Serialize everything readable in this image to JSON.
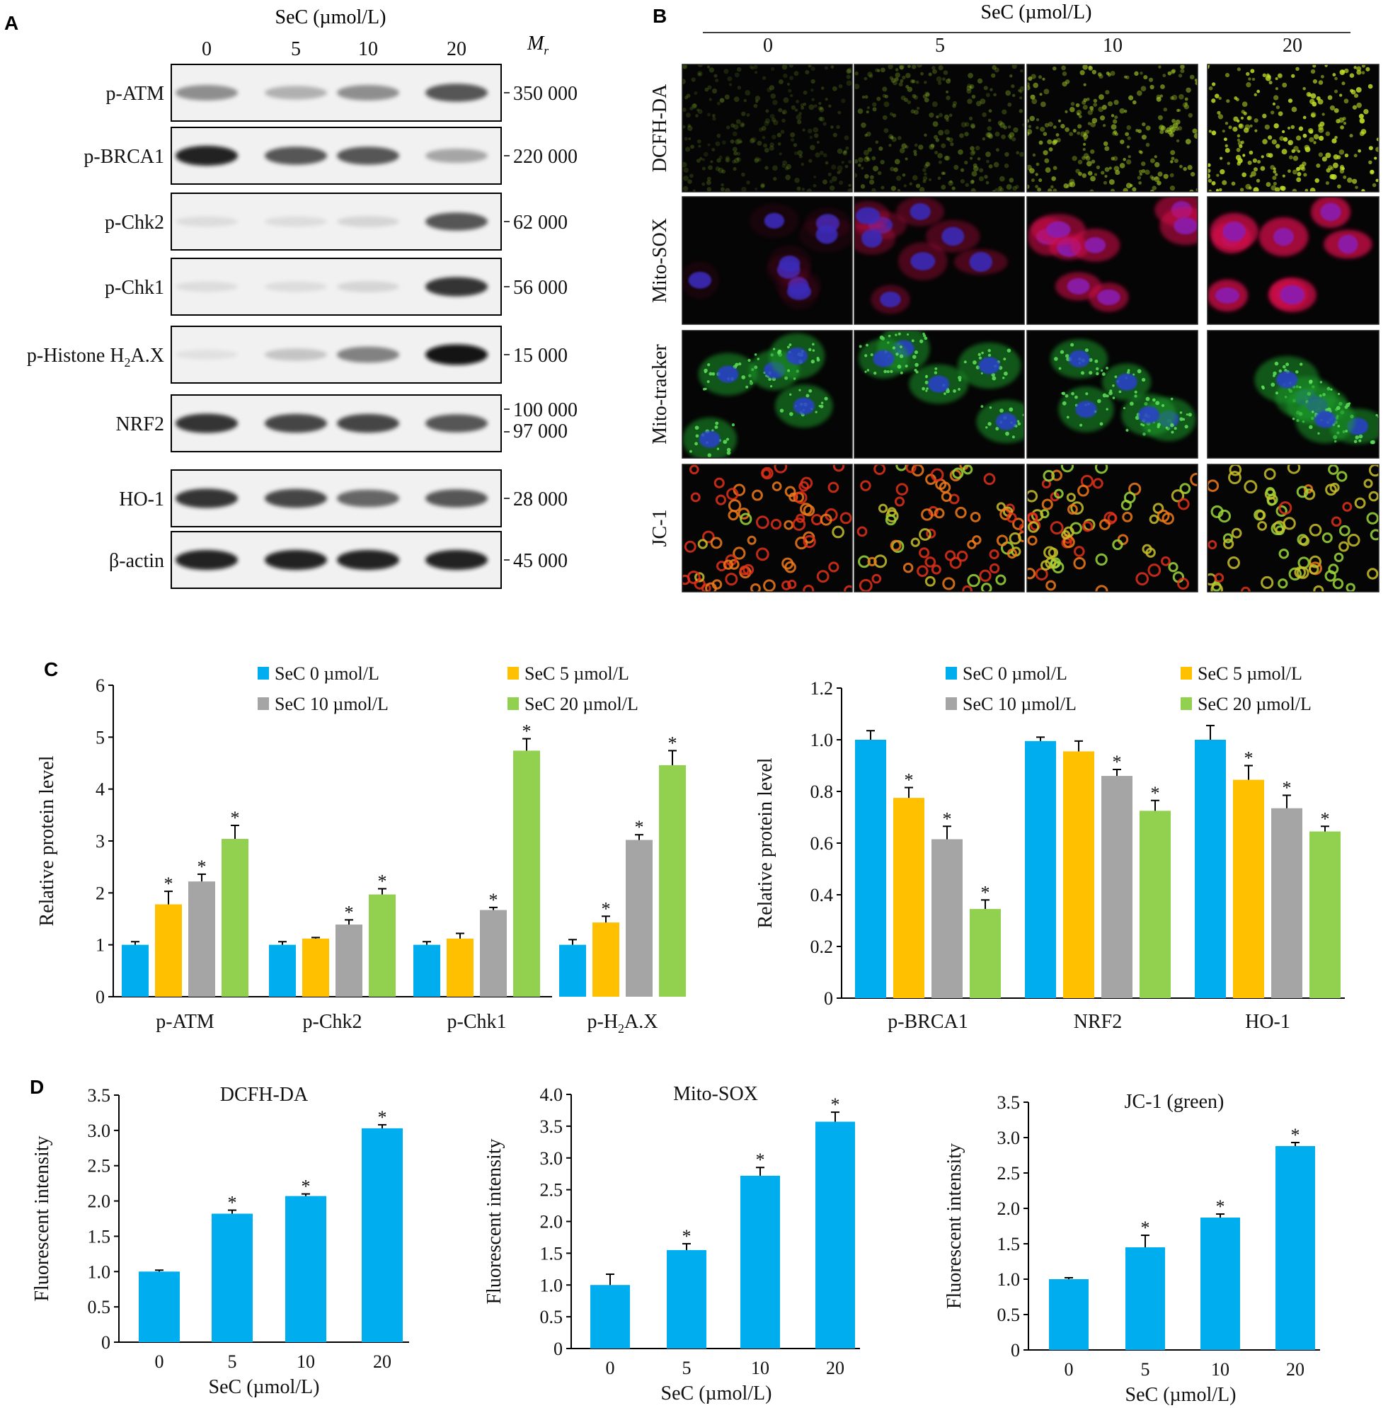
{
  "panel_a": {
    "letter": "A",
    "header": "SeC (µmol/L)",
    "concentrations": [
      "0",
      "5",
      "10",
      "20"
    ],
    "mr_label": "M",
    "mr_sub": "r",
    "blots": [
      {
        "label": "p-ATM",
        "mw": "350 000",
        "intensity": [
          0.55,
          0.4,
          0.55,
          0.75
        ]
      },
      {
        "label": "p-BRCA1",
        "mw": "220 000",
        "intensity": [
          0.9,
          0.75,
          0.75,
          0.45
        ]
      },
      {
        "label": "p-Chk2",
        "mw": "62 000",
        "intensity": [
          0.15,
          0.15,
          0.2,
          0.75
        ]
      },
      {
        "label": "p-Chk1",
        "mw": "56 000",
        "intensity": [
          0.15,
          0.15,
          0.2,
          0.85
        ]
      },
      {
        "label_pre": "p-Histone H",
        "label_sub": "2",
        "label_post": "A.X",
        "mw": "15 000",
        "intensity": [
          0.12,
          0.3,
          0.6,
          0.95
        ]
      },
      {
        "label": "NRF2",
        "mw": "100 000",
        "mw2": "97 000",
        "intensity": [
          0.85,
          0.8,
          0.8,
          0.75
        ]
      },
      {
        "label": "HO-1",
        "mw": "28 000",
        "intensity": [
          0.85,
          0.8,
          0.7,
          0.75
        ]
      },
      {
        "label": "β-actin",
        "mw": "45 000",
        "intensity": [
          0.9,
          0.9,
          0.9,
          0.9
        ]
      }
    ]
  },
  "panel_b": {
    "letter": "B",
    "header": "SeC (µmol/L)",
    "concentrations": [
      "0",
      "5",
      "10",
      "20"
    ],
    "rows": [
      {
        "label": "DCFH-DA",
        "stain": "dcfh",
        "levels": [
          0.15,
          0.3,
          0.6,
          0.9
        ]
      },
      {
        "label": "Mito-SOX",
        "stain": "mitosox",
        "levels": [
          0.1,
          0.4,
          0.7,
          0.9
        ]
      },
      {
        "label": "Mito-tracker",
        "stain": "mitotracker",
        "levels": [
          0.8,
          0.7,
          0.7,
          0.7
        ]
      },
      {
        "label": "JC-1",
        "stain": "jc1",
        "levels": [
          0.05,
          0.3,
          0.55,
          0.9
        ]
      }
    ]
  },
  "colors": {
    "sec0": "#00aeef",
    "sec5": "#ffc000",
    "sec10": "#a5a5a5",
    "sec20": "#92d050"
  },
  "chart_data": [
    {
      "panel": "C",
      "type": "bar",
      "categories": [
        "p-ATM",
        "p-Chk2",
        "p-Chk1",
        "p-H2A.X"
      ],
      "ylabel": "Relative protein level",
      "ylim": [
        0,
        6
      ],
      "yticks": [
        "0",
        "1",
        "2",
        "3",
        "4",
        "5",
        "6"
      ],
      "series": [
        {
          "name": "SeC 0 µmol/L",
          "values": [
            1.0,
            1.0,
            1.0,
            1.0
          ],
          "errors": [
            0.06,
            0.06,
            0.06,
            0.1
          ],
          "sig": [
            false,
            false,
            false,
            false
          ]
        },
        {
          "name": "SeC 5 µmol/L",
          "values": [
            1.78,
            1.12,
            1.12,
            1.43
          ],
          "errors": [
            0.25,
            0.02,
            0.1,
            0.12
          ],
          "sig": [
            true,
            false,
            false,
            true
          ]
        },
        {
          "name": "SeC 10 µmol/L",
          "values": [
            2.22,
            1.39,
            1.67,
            3.02
          ],
          "errors": [
            0.14,
            0.09,
            0.05,
            0.1
          ],
          "sig": [
            true,
            true,
            true,
            true
          ]
        },
        {
          "name": "SeC 20 µmol/L",
          "values": [
            3.04,
            1.97,
            4.74,
            4.46
          ],
          "errors": [
            0.26,
            0.11,
            0.23,
            0.28
          ],
          "sig": [
            true,
            true,
            true,
            true
          ]
        }
      ]
    },
    {
      "panel": "C",
      "type": "bar",
      "categories": [
        "p-BRCA1",
        "NRF2",
        "HO-1"
      ],
      "ylabel": "Relative protein level",
      "ylim": [
        0,
        1.2
      ],
      "yticks": [
        "0",
        "0.2",
        "0.4",
        "0.6",
        "0.8",
        "1.0",
        "1.2"
      ],
      "series": [
        {
          "name": "SeC 0 µmol/L",
          "values": [
            1.0,
            0.995,
            1.0
          ],
          "errors": [
            0.035,
            0.015,
            0.055
          ],
          "sig": [
            false,
            false,
            false
          ]
        },
        {
          "name": "SeC 5 µmol/L",
          "values": [
            0.775,
            0.955,
            0.845
          ],
          "errors": [
            0.04,
            0.04,
            0.055
          ],
          "sig": [
            true,
            false,
            true
          ]
        },
        {
          "name": "SeC 10 µmol/L",
          "values": [
            0.615,
            0.86,
            0.735
          ],
          "errors": [
            0.05,
            0.025,
            0.05
          ],
          "sig": [
            true,
            true,
            true
          ]
        },
        {
          "name": "SeC 20 µmol/L",
          "values": [
            0.345,
            0.725,
            0.645
          ],
          "errors": [
            0.035,
            0.04,
            0.02
          ],
          "sig": [
            true,
            true,
            true
          ]
        }
      ]
    },
    {
      "panel": "D",
      "type": "bar",
      "title": "DCFH-DA",
      "categories": [
        "0",
        "5",
        "10",
        "20"
      ],
      "values": [
        1.0,
        1.82,
        2.07,
        3.03
      ],
      "errors": [
        0.02,
        0.05,
        0.03,
        0.05
      ],
      "sig": [
        false,
        true,
        true,
        true
      ],
      "xlabel": "SeC (µmol/L)",
      "ylabel": "Fluorescent intensity",
      "ylim": [
        0,
        3.5
      ],
      "yticks": [
        "0",
        "0.5",
        "1.0",
        "1.5",
        "2.0",
        "2.5",
        "3.0",
        "3.5"
      ]
    },
    {
      "panel": "D",
      "type": "bar",
      "title": "Mito-SOX",
      "categories": [
        "0",
        "5",
        "10",
        "20"
      ],
      "values": [
        1.0,
        1.55,
        2.72,
        3.57
      ],
      "errors": [
        0.17,
        0.1,
        0.13,
        0.15
      ],
      "sig": [
        false,
        true,
        true,
        true
      ],
      "xlabel": "SeC (µmol/L)",
      "ylabel": "Fluorescent intensity",
      "ylim": [
        0,
        4.0
      ],
      "yticks": [
        "0",
        "0.5",
        "1.0",
        "1.5",
        "2.0",
        "2.5",
        "3.0",
        "3.5",
        "4.0"
      ]
    },
    {
      "panel": "D",
      "type": "bar",
      "title": "JC-1 (green)",
      "categories": [
        "0",
        "5",
        "10",
        "20"
      ],
      "values": [
        1.0,
        1.45,
        1.87,
        2.88
      ],
      "errors": [
        0.02,
        0.17,
        0.05,
        0.05
      ],
      "sig": [
        false,
        true,
        true,
        true
      ],
      "xlabel": "SeC (µmol/L)",
      "ylabel": "Fluorescent intensity",
      "ylim": [
        0,
        3.5
      ],
      "yticks": [
        "0",
        "0.5",
        "1.0",
        "1.5",
        "2.0",
        "2.5",
        "3.0",
        "3.5"
      ]
    }
  ],
  "panel_c_letter": "C",
  "panel_d_letter": "D",
  "sig_mark": "*"
}
